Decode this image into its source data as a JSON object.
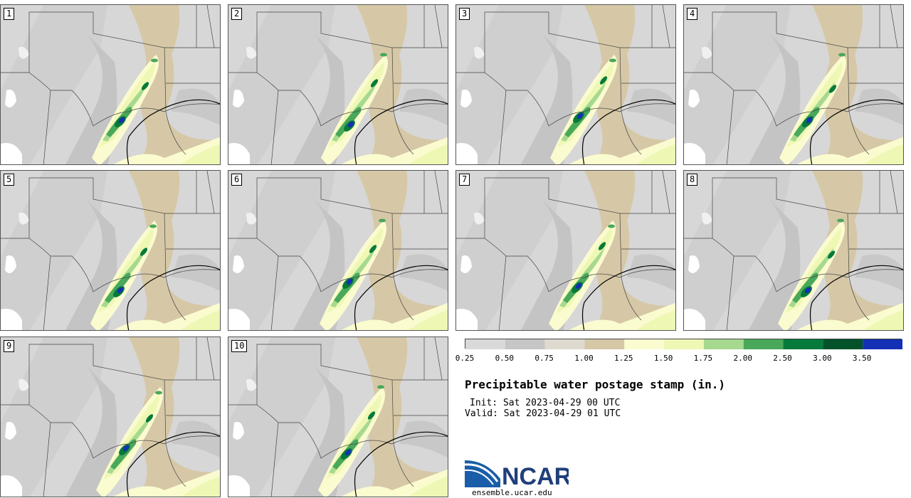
{
  "members": [
    "1",
    "2",
    "3",
    "4",
    "5",
    "6",
    "7",
    "8",
    "9",
    "10"
  ],
  "colorbar": {
    "ticks": [
      "0.25",
      "0.50",
      "0.75",
      "1.00",
      "1.25",
      "1.50",
      "1.75",
      "2.00",
      "2.50",
      "3.00",
      "3.50"
    ],
    "colors": [
      "#d9d9d9",
      "#c6c6c6",
      "#dedad0",
      "#d6c8a6",
      "#fbfbd0",
      "#eef8b4",
      "#a6d98f",
      "#49a85a",
      "#067a3a",
      "#03522a",
      "#1430b4"
    ]
  },
  "title": "Precipitable water postage stamp (in.)",
  "init": "Init: Sat 2023-04-29 00 UTC",
  "valid": "Valid: Sat 2023-04-29 01 UTC",
  "logo": {
    "name": "NCAR",
    "url": "ensemble.ucar.edu"
  }
}
